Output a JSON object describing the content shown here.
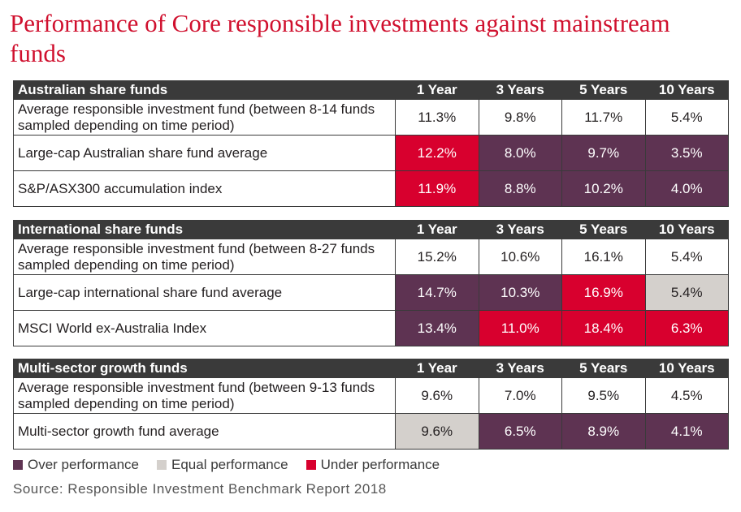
{
  "title": "Performance of Core responsible investments against mainstream funds",
  "colors": {
    "over": "#5e3352",
    "equal": "#d4d0cc",
    "under": "#d8002e",
    "plain": "#ffffff",
    "title": "#d0102e"
  },
  "tables": [
    {
      "header": "Australian share funds",
      "columns": [
        "1 Year",
        "3 Years",
        "5 Years",
        "10 Years"
      ],
      "rows": [
        {
          "label": "Average responsible investment fund (between 8-14 funds sampled depending on time period)",
          "values": [
            "11.3%",
            "9.8%",
            "11.7%",
            "5.4%"
          ],
          "status": [
            "plain",
            "plain",
            "plain",
            "plain"
          ]
        },
        {
          "label": "Large-cap Australian share fund average",
          "values": [
            "12.2%",
            "8.0%",
            "9.7%",
            "3.5%"
          ],
          "status": [
            "under",
            "over",
            "over",
            "over"
          ]
        },
        {
          "label": "S&P/ASX300 accumulation index",
          "values": [
            "11.9%",
            "8.8%",
            "10.2%",
            "4.0%"
          ],
          "status": [
            "under",
            "over",
            "over",
            "over"
          ]
        }
      ]
    },
    {
      "header": "International share funds",
      "columns": [
        "1 Year",
        "3 Years",
        "5 Years",
        "10 Years"
      ],
      "rows": [
        {
          "label": "Average responsible investment fund (between 8-27 funds sampled depending on time period)",
          "values": [
            "15.2%",
            "10.6%",
            "16.1%",
            "5.4%"
          ],
          "status": [
            "plain",
            "plain",
            "plain",
            "plain"
          ]
        },
        {
          "label": "Large-cap international share fund average",
          "values": [
            "14.7%",
            "10.3%",
            "16.9%",
            "5.4%"
          ],
          "status": [
            "over",
            "over",
            "under",
            "equal"
          ]
        },
        {
          "label": "MSCI World ex-Australia Index",
          "values": [
            "13.4%",
            "11.0%",
            "18.4%",
            "6.3%"
          ],
          "status": [
            "over",
            "under",
            "under",
            "under"
          ]
        }
      ]
    },
    {
      "header": "Multi-sector growth funds",
      "columns": [
        "1 Year",
        "3 Years",
        "5 Years",
        "10 Years"
      ],
      "rows": [
        {
          "label": "Average responsible investment fund (between 9-13 funds sampled depending on time period)",
          "values": [
            "9.6%",
            "7.0%",
            "9.5%",
            "4.5%"
          ],
          "status": [
            "plain",
            "plain",
            "plain",
            "plain"
          ]
        },
        {
          "label": "Multi-sector growth fund average",
          "values": [
            "9.6%",
            "6.5%",
            "8.9%",
            "4.1%"
          ],
          "status": [
            "equal",
            "over",
            "over",
            "over"
          ]
        }
      ]
    }
  ],
  "legend": [
    {
      "label": "Over performance",
      "color": "#5e3352"
    },
    {
      "label": "Equal performance",
      "color": "#d4d0cc"
    },
    {
      "label": "Under performance",
      "color": "#d8002e"
    }
  ],
  "source": "Source:  Responsible Investment Benchmark Report 2018"
}
